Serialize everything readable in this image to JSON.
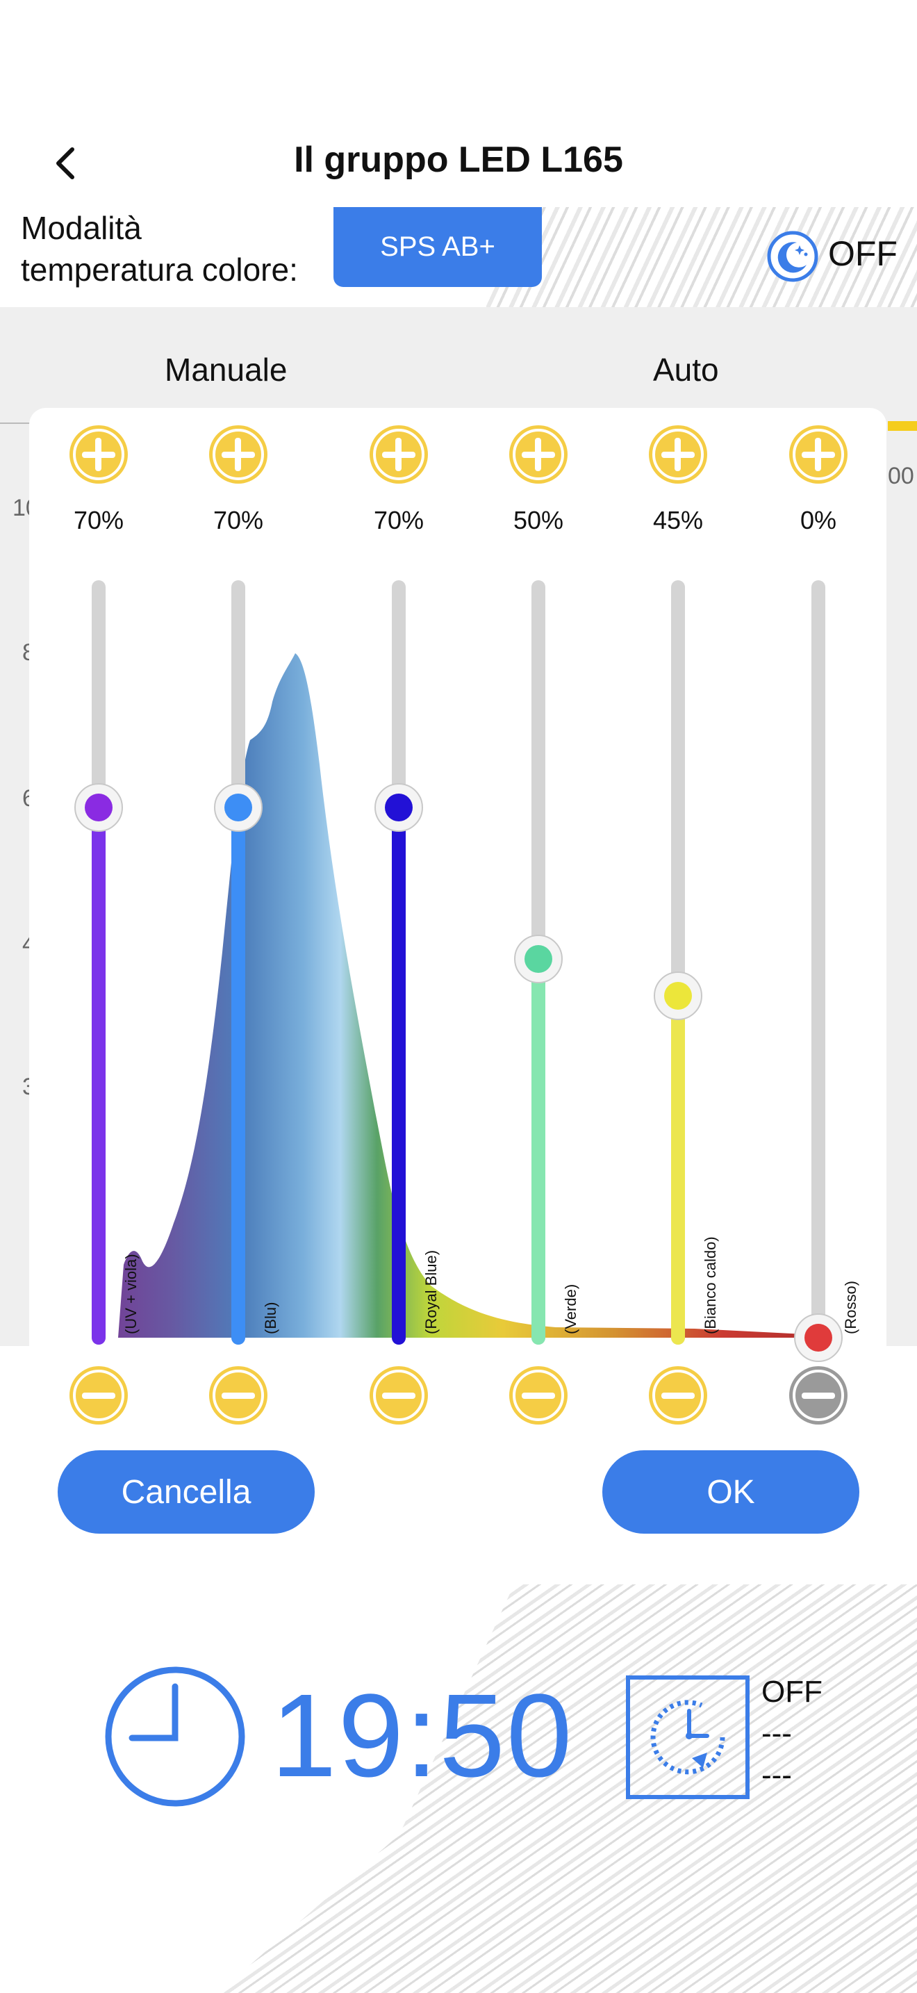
{
  "header": {
    "title": "Il gruppo LED L165",
    "back_icon": "chevron-left-icon"
  },
  "mode": {
    "label_line1": "Modalità",
    "label_line2": "temperatura colore:",
    "selected": "SPS AB+",
    "moon_icon": "moon-stars-icon",
    "moon_state": "OFF"
  },
  "tabs": [
    {
      "label": "Manuale"
    },
    {
      "label": "Auto"
    }
  ],
  "background_axis": {
    "y_ticks": [
      "10",
      "8",
      "6",
      "4",
      "3"
    ],
    "x_tick": "00"
  },
  "channels": [
    {
      "label": "(UV + viola)",
      "percent": "70%",
      "value": 70,
      "color": "#7b33ea",
      "knob": "#8a2be2"
    },
    {
      "label": "(Blu)",
      "percent": "70%",
      "value": 70,
      "color": "#3d8ef5",
      "knob": "#3d8ef5"
    },
    {
      "label": "(Royal Blue)",
      "percent": "70%",
      "value": 70,
      "color": "#2211d6",
      "knob": "#2211d6"
    },
    {
      "label": "(Verde)",
      "percent": "50%",
      "value": 50,
      "color": "#86e6b0",
      "knob": "#5ad6a0"
    },
    {
      "label": "(Bianco caldo)",
      "percent": "45%",
      "value": 45,
      "color": "#ece64f",
      "knob": "#ece63a"
    },
    {
      "label": "(Rosso)",
      "percent": "0%",
      "value": 0,
      "color": "#d9d9d9",
      "knob": "#e03b3b"
    }
  ],
  "buttons": {
    "cancel": "Cancella",
    "ok": "OK"
  },
  "clock": {
    "icon": "clock-icon",
    "time": "19:50"
  },
  "timer": {
    "icon": "timer-reset-icon",
    "state": "OFF",
    "line2": "---",
    "line3": "---"
  },
  "colors": {
    "accent": "#3b7de8",
    "button_yellow": "#f5cd45",
    "track_grey": "#d4d4d4"
  }
}
